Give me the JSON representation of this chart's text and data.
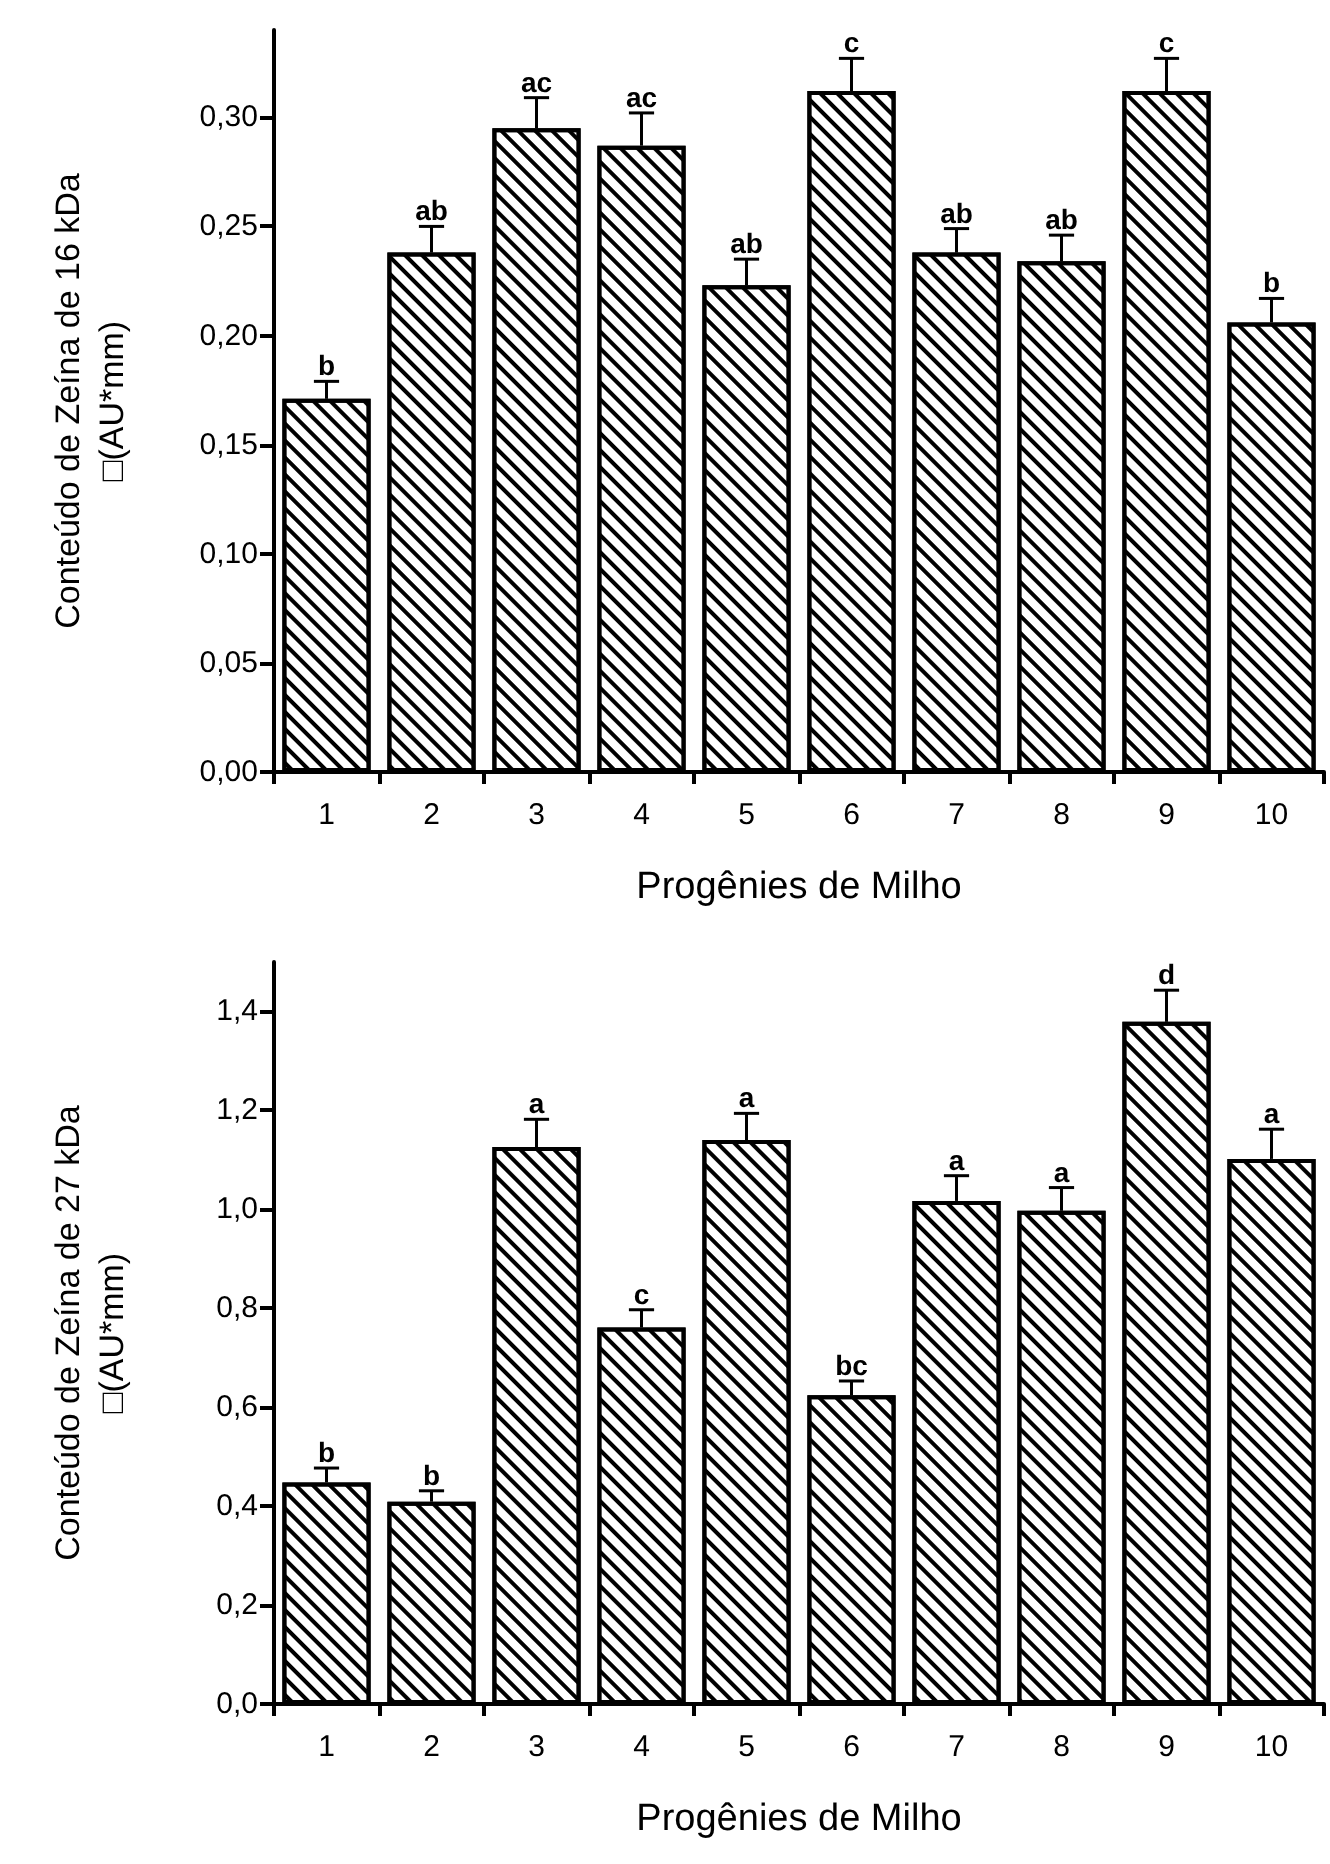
{
  "chart_data": [
    {
      "type": "bar",
      "xlabel": "Progênies de Milho",
      "ylabel": "Conteúdo de Zeína de 16 kDa\n□(AU*mm)",
      "categories": [
        "1",
        "2",
        "3",
        "4",
        "5",
        "6",
        "7",
        "8",
        "9",
        "10"
      ],
      "color": "#ffffff",
      "values": [
        0.171,
        0.238,
        0.295,
        0.287,
        0.223,
        0.312,
        0.238,
        0.234,
        0.312,
        0.206
      ],
      "errors": [
        [
          0.171,
          0.179
        ],
        [
          0.238,
          0.25
        ],
        [
          0.295,
          0.309
        ],
        [
          0.287,
          0.302
        ],
        [
          0.223,
          0.235
        ],
        [
          0.312,
          0.327
        ],
        [
          0.238,
          0.249
        ],
        [
          0.234,
          0.246
        ],
        [
          0.312,
          0.327
        ],
        [
          0.206,
          0.217
        ]
      ],
      "ylim": [
        0,
        0.34
      ],
      "yticks": [
        {
          "value": 0,
          "label": "0,00"
        },
        {
          "value": 0.05,
          "label": "0,05"
        },
        {
          "value": 0.1,
          "label": "0,10"
        },
        {
          "value": 0.15,
          "label": "0,15"
        },
        {
          "value": 0.2,
          "label": "0,20"
        },
        {
          "value": 0.25,
          "label": "0,25"
        },
        {
          "value": 0.3,
          "label": "0,30"
        }
      ],
      "annotations": [
        {
          "text": "b",
          "x": "1",
          "y": 0.179
        },
        {
          "text": "ab",
          "x": "2",
          "y": 0.25
        },
        {
          "text": "ac",
          "x": "3",
          "y": 0.309
        },
        {
          "text": "ac",
          "x": "4",
          "y": 0.302
        },
        {
          "text": "ab",
          "x": "5",
          "y": 0.235
        },
        {
          "text": "c",
          "x": "6",
          "y": 0.327
        },
        {
          "text": "ab",
          "x": "7",
          "y": 0.249
        },
        {
          "text": "ab",
          "x": "8",
          "y": 0.246
        },
        {
          "text": "c",
          "x": "9",
          "y": 0.327
        },
        {
          "text": "b",
          "x": "10",
          "y": 0.217
        }
      ]
    },
    {
      "type": "bar",
      "xlabel": "Progênies de Milho",
      "ylabel": "Conteúdo de Zeína de 27 kDa\n□(AU*mm)",
      "categories": [
        "1",
        "2",
        "3",
        "4",
        "5",
        "6",
        "7",
        "8",
        "9",
        "10"
      ],
      "color": "#ffffff",
      "values": [
        0.448,
        0.409,
        1.126,
        0.761,
        1.14,
        0.624,
        1.017,
        0.997,
        1.379,
        1.102
      ],
      "errors": [
        [
          0.448,
          0.477
        ],
        [
          0.409,
          0.431
        ],
        [
          1.126,
          1.182
        ],
        [
          0.761,
          0.797
        ],
        [
          1.14,
          1.194
        ],
        [
          0.624,
          0.653
        ],
        [
          1.017,
          1.068
        ],
        [
          0.997,
          1.044
        ],
        [
          1.379,
          1.443
        ],
        [
          1.102,
          1.162
        ]
      ],
      "ylim": [
        0,
        1.5
      ],
      "yticks": [
        {
          "value": 0,
          "label": "0,0"
        },
        {
          "value": 0.2,
          "label": "0,2"
        },
        {
          "value": 0.4,
          "label": "0,4"
        },
        {
          "value": 0.6,
          "label": "0,6"
        },
        {
          "value": 0.8,
          "label": "0,8"
        },
        {
          "value": 1,
          "label": "1,0"
        },
        {
          "value": 1.2,
          "label": "1,2"
        },
        {
          "value": 1.4,
          "label": "1,4"
        }
      ],
      "annotations": [
        {
          "text": "b",
          "x": "1",
          "y": 0.477
        },
        {
          "text": "b",
          "x": "2",
          "y": 0.431
        },
        {
          "text": "a",
          "x": "3",
          "y": 1.182
        },
        {
          "text": "c",
          "x": "4",
          "y": 0.797
        },
        {
          "text": "a",
          "x": "5",
          "y": 1.194
        },
        {
          "text": "bc",
          "x": "6",
          "y": 0.653
        },
        {
          "text": "a",
          "x": "7",
          "y": 1.068
        },
        {
          "text": "a",
          "x": "8",
          "y": 1.044
        },
        {
          "text": "d",
          "x": "9",
          "y": 1.443
        },
        {
          "text": "a",
          "x": "10",
          "y": 1.162
        }
      ]
    }
  ]
}
